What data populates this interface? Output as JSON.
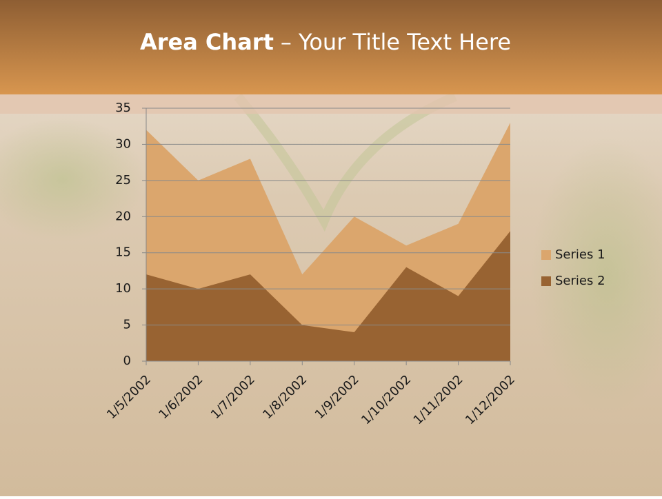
{
  "chart_data": {
    "type": "area",
    "title": {
      "bold": "Area Chart",
      "rest": "– Your Title Text Here"
    },
    "categories": [
      "1/5/2002",
      "1/6/2002",
      "1/7/2002",
      "1/8/2002",
      "1/9/2002",
      "1/10/2002",
      "1/11/2002",
      "1/12/2002"
    ],
    "series": [
      {
        "name": "Series 1",
        "color": "#dba66d",
        "values": [
          32,
          25,
          28,
          12,
          20,
          16,
          19,
          33
        ]
      },
      {
        "name": "Series 2",
        "color": "#986332",
        "values": [
          12,
          10,
          12,
          5,
          4,
          13,
          9,
          18
        ]
      }
    ],
    "ylim": [
      0,
      35
    ],
    "yticks": [
      0,
      5,
      10,
      15,
      20,
      25,
      30,
      35
    ],
    "grid": true,
    "legend": "right"
  }
}
